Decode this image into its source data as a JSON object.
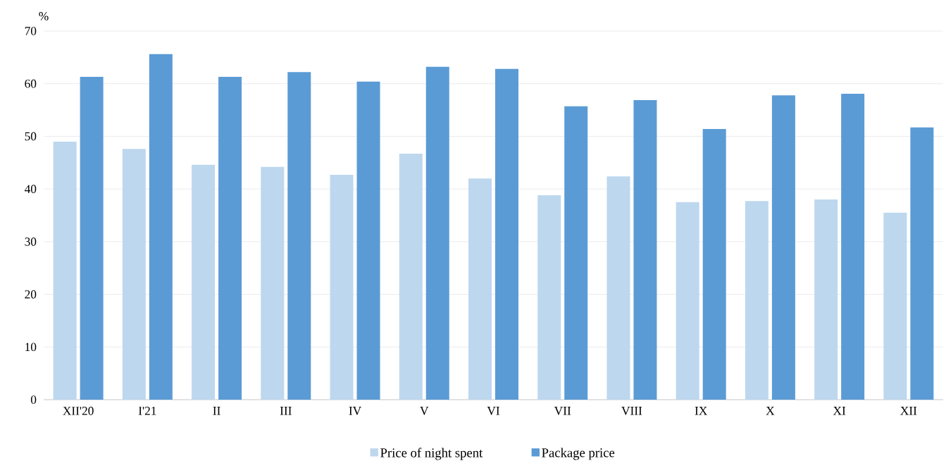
{
  "chart_data": {
    "type": "bar",
    "ylabel": "%",
    "categories": [
      "XII'20",
      "I'21",
      "II",
      "III",
      "IV",
      "V",
      "VI",
      "VII",
      "VIII",
      "IX",
      "X",
      "XI",
      "XII"
    ],
    "series": [
      {
        "name": "Price of night spent",
        "color": "#bdd7ee",
        "values": [
          49.0,
          47.6,
          44.6,
          44.2,
          42.7,
          46.7,
          42.0,
          38.8,
          42.4,
          37.5,
          37.7,
          38.0,
          35.5
        ]
      },
      {
        "name": "Package price",
        "color": "#5b9bd5",
        "values": [
          61.3,
          65.6,
          61.3,
          62.2,
          60.4,
          63.2,
          62.8,
          55.7,
          56.9,
          51.4,
          57.8,
          58.1,
          51.7
        ]
      }
    ],
    "ylim": [
      0,
      70
    ],
    "yticks": [
      0,
      10,
      20,
      30,
      40,
      50,
      60,
      70
    ],
    "grid": "y",
    "legend": "bottom"
  }
}
